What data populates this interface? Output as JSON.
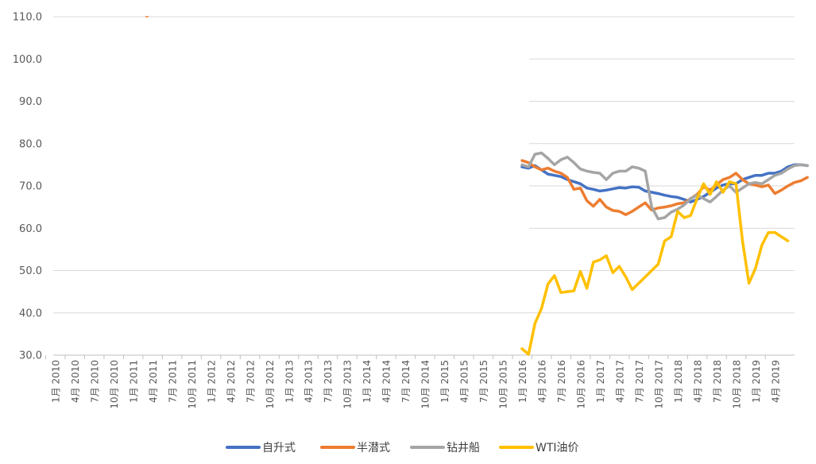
{
  "chart_data": {
    "type": "line",
    "y_ticks": [
      "30.0",
      "40.0",
      "50.0",
      "60.0",
      "70.0",
      "80.0",
      "90.0",
      "100.0",
      "110.0"
    ],
    "ylim": [
      30,
      110
    ],
    "grid": true,
    "legend_position": "bottom",
    "x_labels": [
      "1月 2010",
      "4月 2010",
      "7月 2010",
      "10月 2010",
      "1月 2011",
      "4月 2011",
      "7月 2011",
      "10月 2011",
      "1月 2012",
      "4月 2012",
      "7月 2012",
      "10月 2012",
      "1月 2013",
      "4月 2013",
      "7月 2013",
      "10月 2013",
      "1月 2014",
      "4月 2014",
      "7月 2014",
      "10月 2014",
      "1月 2015",
      "4月 2015",
      "7月 2015",
      "10月 2015",
      "1月 2016",
      "4月 2016",
      "7月 2016",
      "10月 2016",
      "1月 2017",
      "4月 2017",
      "7月 2017",
      "10月 2017",
      "1月 2018",
      "4月 2018",
      "7月 2018",
      "10月 2018",
      "1月 2019",
      "4月 2019"
    ],
    "series": [
      {
        "name": "自升式",
        "color": "#4472C4",
        "start": "2016-01",
        "values": [
          74.5,
          74.2,
          74.8,
          73.8,
          72.8,
          72.5,
          72.2,
          71.5,
          71.0,
          70.5,
          69.5,
          69.2,
          68.8,
          69.0,
          69.3,
          69.6,
          69.5,
          69.8,
          69.7,
          68.8,
          68.5,
          68.2,
          67.8,
          67.5,
          67.3,
          66.8,
          66.2,
          66.8,
          67.5,
          68.5,
          69.5,
          70.2,
          70.5,
          70.5,
          71.5,
          72.0,
          72.5,
          72.5,
          73.0,
          73.0,
          73.5,
          74.5,
          75.0,
          75.0,
          74.8
        ]
      },
      {
        "name": "半潜式",
        "color": "#ED7D31",
        "start": "2016-01",
        "values": [
          76.0,
          75.5,
          74.5,
          73.8,
          74.2,
          73.5,
          73.0,
          72.0,
          69.2,
          69.5,
          66.5,
          65.2,
          66.8,
          65.0,
          64.2,
          64.0,
          63.2,
          64.0,
          65.0,
          66.0,
          64.3,
          64.8,
          65.0,
          65.3,
          65.8,
          66.0,
          67.0,
          68.0,
          69.8,
          69.0,
          70.2,
          71.5,
          72.0,
          73.0,
          71.5,
          70.5,
          70.2,
          69.8,
          70.2,
          68.2,
          69.0,
          70.0,
          70.8,
          71.2,
          72.0
        ]
      },
      {
        "name": "钻井船",
        "color": "#A5A5A5",
        "start": "2016-01",
        "values": [
          75.0,
          74.5,
          77.5,
          77.8,
          76.5,
          75.0,
          76.2,
          76.8,
          75.5,
          74.0,
          73.5,
          73.2,
          73.0,
          71.5,
          73.0,
          73.5,
          73.5,
          74.5,
          74.2,
          73.5,
          65.0,
          62.2,
          62.5,
          63.8,
          64.5,
          65.5,
          67.0,
          67.8,
          67.0,
          66.2,
          67.5,
          69.0,
          70.0,
          68.5,
          69.5,
          70.5,
          70.8,
          70.5,
          71.5,
          72.5,
          73.0,
          74.0,
          74.8,
          75.0,
          74.8
        ]
      },
      {
        "name": "WTI油价",
        "color": "#FFC000",
        "start": "2016-01",
        "values": [
          31.5,
          30.2,
          37.5,
          41.0,
          46.8,
          48.8,
          44.8,
          45.0,
          45.2,
          49.8,
          45.8,
          52.0,
          52.5,
          53.5,
          49.5,
          51.0,
          48.5,
          45.5,
          47.0,
          48.5,
          50.0,
          51.5,
          57.0,
          58.0,
          64.0,
          62.5,
          63.0,
          67.0,
          70.5,
          68.0,
          71.0,
          68.5,
          71.0,
          70.5,
          57.0,
          47.0,
          50.5,
          56.0,
          59.0,
          59.0,
          58.0,
          57.0
        ]
      }
    ],
    "stray_mark": {
      "x_index": 5,
      "y": 110.0,
      "color": "#ED7D31"
    }
  }
}
